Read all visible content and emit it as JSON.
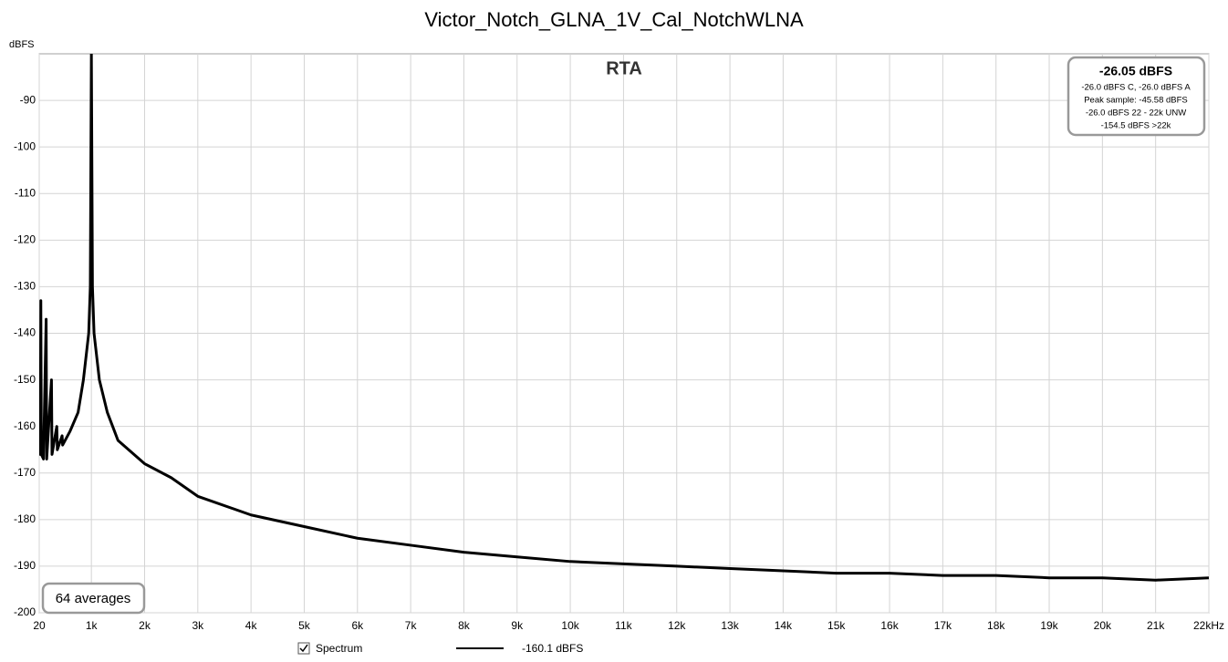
{
  "chart_data": {
    "type": "line",
    "title": "Victor_Notch_GLNA_1V_Cal_NotchWLNA",
    "subtitle": "RTA",
    "y_label": "dBFS",
    "xlim": [
      20,
      22000
    ],
    "ylim": [
      -200,
      -80
    ],
    "xticks": [
      20,
      {
        "value": 1000,
        "label": "1k"
      },
      {
        "value": 2000,
        "label": "2k"
      },
      {
        "value": 3000,
        "label": "3k"
      },
      {
        "value": 4000,
        "label": "4k"
      },
      {
        "value": 5000,
        "label": "5k"
      },
      {
        "value": 6000,
        "label": "6k"
      },
      {
        "value": 7000,
        "label": "7k"
      },
      {
        "value": 8000,
        "label": "8k"
      },
      {
        "value": 9000,
        "label": "9k"
      },
      {
        "value": 10000,
        "label": "10k"
      },
      {
        "value": 11000,
        "label": "11k"
      },
      {
        "value": 12000,
        "label": "12k"
      },
      {
        "value": 13000,
        "label": "13k"
      },
      {
        "value": 14000,
        "label": "14k"
      },
      {
        "value": 15000,
        "label": "15k"
      },
      {
        "value": 16000,
        "label": "16k"
      },
      {
        "value": 17000,
        "label": "17k"
      },
      {
        "value": 18000,
        "label": "18k"
      },
      {
        "value": 19000,
        "label": "19k"
      },
      {
        "value": 20000,
        "label": "20k"
      },
      {
        "value": 21000,
        "label": "21k"
      },
      {
        "value": 22000,
        "label": "22kHz"
      }
    ],
    "yticks": [
      -200,
      -190,
      -180,
      -170,
      -160,
      -150,
      -140,
      -130,
      -120,
      -110,
      -100,
      -90
    ],
    "grid": true,
    "x": [
      20,
      40,
      50,
      60,
      100,
      150,
      160,
      250,
      260,
      350,
      360,
      450,
      460,
      600,
      750,
      850,
      950,
      980,
      1000,
      1020,
      1050,
      1150,
      1300,
      1500,
      2000,
      2500,
      3000,
      4000,
      5000,
      6000,
      7000,
      8000,
      9000,
      10000,
      11000,
      12000,
      13000,
      14000,
      15000,
      16000,
      17000,
      18000,
      19000,
      20000,
      21000,
      22000
    ],
    "series": [
      {
        "name": "Spectrum",
        "color": "#000000",
        "values": [
          -163,
          -166,
          -133,
          -166,
          -167,
          -137,
          -167,
          -150,
          -166,
          -160,
          -165,
          -162,
          -164,
          -161,
          -157,
          -150,
          -140,
          -130,
          -80,
          -130,
          -140,
          -150,
          -157,
          -163,
          -168,
          -171,
          -175,
          -179,
          -181.5,
          -184,
          -185.5,
          -187,
          -188,
          -189,
          -189.5,
          -190,
          -190.5,
          -191,
          -191.5,
          -191.5,
          -192,
          -192,
          -192.5,
          -192.5,
          -193,
          -192.5
        ]
      }
    ],
    "legend_readout": "-160.1 dBFS",
    "info_box": {
      "headline": "-26.05 dBFS",
      "lines": [
        "-26.0 dBFS C, -26.0 dBFS A",
        "Peak sample: -45.58 dBFS",
        "-26.0 dBFS 22 - 22k UNW",
        "-154.5 dBFS >22k"
      ]
    },
    "averages_note": "64 averages"
  }
}
